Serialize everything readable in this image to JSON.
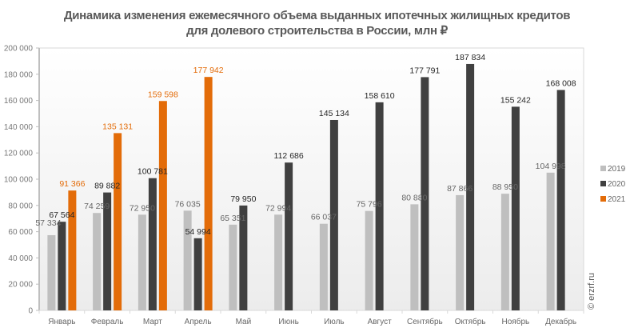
{
  "chart_data": {
    "type": "bar",
    "title_line1": "Динамика изменения ежемесячного объема выданных ипотечных жилищных кредитов",
    "title_line2": "для долевого строительства  в России, млн ₽",
    "xlabel": "",
    "ylabel": "",
    "ylim": [
      0,
      200000
    ],
    "yticks": [
      0,
      20000,
      40000,
      60000,
      80000,
      100000,
      120000,
      140000,
      160000,
      180000,
      200000
    ],
    "ytick_labels": [
      "0",
      "20 000",
      "40 000",
      "60 000",
      "80 000",
      "100 000",
      "120 000",
      "140 000",
      "160 000",
      "180 000",
      "200 000"
    ],
    "grid": false,
    "legend_position": "right",
    "categories": [
      "Январь",
      "Февраль",
      "Март",
      "Апрель",
      "Май",
      "Июнь",
      "Июль",
      "Август",
      "Сентябрь",
      "Октябрь",
      "Ноябрь",
      "Декабрь"
    ],
    "series": [
      {
        "name": "2019",
        "color": "#bfbfbf",
        "label_color": "#666666",
        "values": [
          57334,
          74259,
          72950,
          76035,
          65351,
          72994,
          66037,
          75796,
          80880,
          87866,
          88950,
          104998
        ],
        "labels": [
          "57 334",
          "74 259",
          "72 950",
          "76 035",
          "65 351",
          "72 994",
          "66 037",
          "75 796",
          "80 880",
          "87 866",
          "88 950",
          "104 998"
        ]
      },
      {
        "name": "2020",
        "color": "#404040",
        "label_color": "#262626",
        "values": [
          67564,
          89882,
          100781,
          54994,
          79950,
          112686,
          145134,
          158610,
          177791,
          187834,
          155242,
          168008
        ],
        "labels": [
          "67 564",
          "89 882",
          "100 781",
          "54 994",
          "79 950",
          "112 686",
          "145 134",
          "158 610",
          "177 791",
          "187 834",
          "155 242",
          "168 008"
        ]
      },
      {
        "name": "2021",
        "color": "#e36c09",
        "label_color": "#e36c09",
        "values": [
          91366,
          135131,
          159598,
          177942,
          null,
          null,
          null,
          null,
          null,
          null,
          null,
          null
        ],
        "labels": [
          "91 366",
          "135 131",
          "159 598",
          "177 942",
          null,
          null,
          null,
          null,
          null,
          null,
          null,
          null
        ]
      }
    ],
    "watermark": "© erzrf.ru"
  }
}
